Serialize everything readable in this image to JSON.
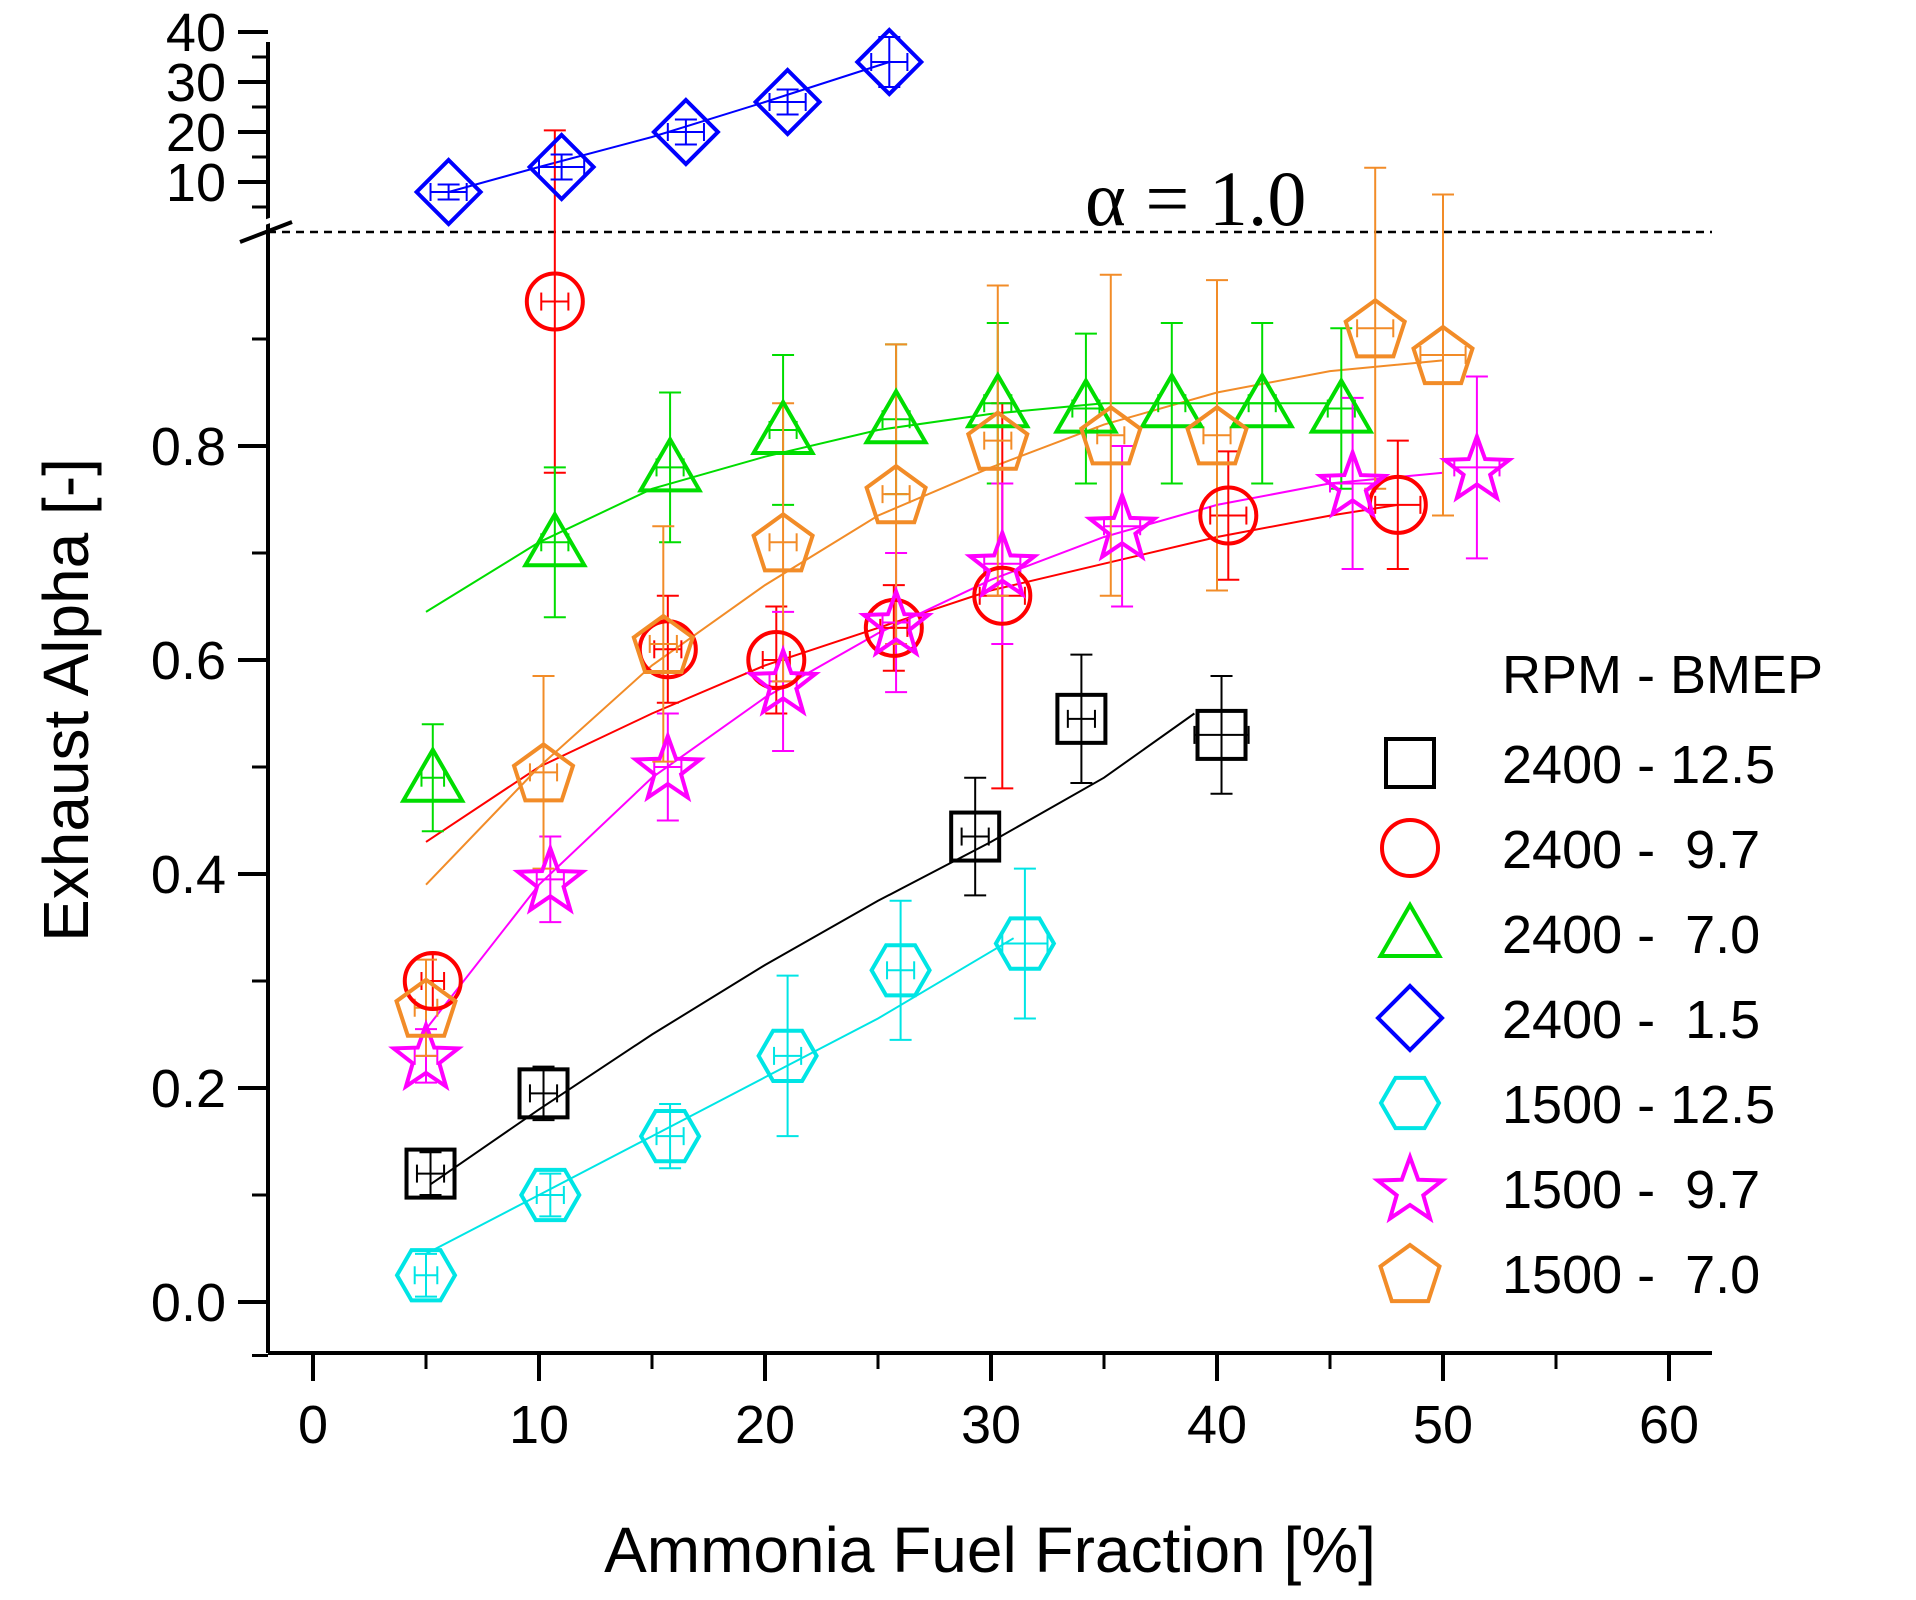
{
  "chart_data": {
    "type": "scatter",
    "title": "",
    "xlabel": "Ammonia Fuel Fraction [%]",
    "ylabel": "Exhaust Alpha [-]",
    "xlim": [
      -2,
      62
    ],
    "xticks": [
      "0",
      "10",
      "20",
      "30",
      "40",
      "50",
      "60"
    ],
    "ylim": [
      -0.05,
      1.0
    ],
    "yticks": [
      "0.0",
      "0.2",
      "0.4",
      "0.6",
      "0.8"
    ],
    "upper_segment": {
      "ylim": [
        0,
        40
      ],
      "yticks": [
        "10",
        "20",
        "30",
        "40"
      ]
    },
    "axis_break": true,
    "reference_line": {
      "y": 1.0,
      "label": "α = 1.0",
      "style": "dashed"
    },
    "grid": false,
    "legend": {
      "title": "RPM - BMEP",
      "placement": "right"
    },
    "series": [
      {
        "name": "2400 - 12.5",
        "marker": "square",
        "color": "#000000",
        "points": [
          {
            "x": 5.2,
            "y": 0.12,
            "err": 0.02,
            "xerr": 0.6
          },
          {
            "x": 10.2,
            "y": 0.195,
            "err": 0.025,
            "xerr": 0.6
          },
          {
            "x": 29.3,
            "y": 0.435,
            "err": 0.055,
            "xerr": 0.6
          },
          {
            "x": 34,
            "y": 0.545,
            "err": 0.06,
            "xerr": 0.6
          },
          {
            "x": 40.2,
            "y": 0.53,
            "err": 0.055,
            "xerr": 1.2
          }
        ],
        "fit": [
          [
            5.2,
            0.11
          ],
          [
            10,
            0.18
          ],
          [
            15,
            0.25
          ],
          [
            20,
            0.315
          ],
          [
            25,
            0.375
          ],
          [
            30,
            0.43
          ],
          [
            35,
            0.49
          ],
          [
            39,
            0.55
          ]
        ]
      },
      {
        "name": "2400 -  9.7",
        "marker": "circle",
        "color": "#ff0000",
        "points": [
          {
            "x": 5.3,
            "y": 0.3,
            "err": 0.025,
            "xerr": 0.5
          },
          {
            "x": 10.7,
            "y": 0.935,
            "err": 0.16,
            "xerr": 0.6
          },
          {
            "x": 15.7,
            "y": 0.61,
            "err": 0.05,
            "xerr": 0.6
          },
          {
            "x": 20.5,
            "y": 0.6,
            "err": 0.05,
            "xerr": 0.6
          },
          {
            "x": 25.7,
            "y": 0.63,
            "err": 0.04,
            "xerr": 0.6
          },
          {
            "x": 30.5,
            "y": 0.66,
            "err": 0.18,
            "xerr": 1.0
          },
          {
            "x": 40.5,
            "y": 0.735,
            "err": 0.06,
            "xerr": 0.8
          },
          {
            "x": 48,
            "y": 0.745,
            "err": 0.06,
            "xerr": 1.0
          }
        ],
        "fit": [
          [
            5,
            0.43
          ],
          [
            10,
            0.5
          ],
          [
            15,
            0.55
          ],
          [
            20,
            0.595
          ],
          [
            25,
            0.63
          ],
          [
            30,
            0.665
          ],
          [
            35,
            0.69
          ],
          [
            40,
            0.715
          ],
          [
            45,
            0.735
          ],
          [
            48,
            0.745
          ]
        ]
      },
      {
        "name": "2400 -  7.0",
        "marker": "triangle",
        "color": "#00dd00",
        "points": [
          {
            "x": 5.3,
            "y": 0.49,
            "err": 0.05,
            "xerr": 0.5
          },
          {
            "x": 10.7,
            "y": 0.71,
            "err": 0.07,
            "xerr": 0.6
          },
          {
            "x": 15.8,
            "y": 0.78,
            "err": 0.07,
            "xerr": 0.6
          },
          {
            "x": 20.8,
            "y": 0.815,
            "err": 0.07,
            "xerr": 0.6
          },
          {
            "x": 25.8,
            "y": 0.825,
            "err": 0.07,
            "xerr": 0.6
          },
          {
            "x": 30.3,
            "y": 0.84,
            "err": 0.075,
            "xerr": 0.6
          },
          {
            "x": 34.2,
            "y": 0.835,
            "err": 0.07,
            "xerr": 0.6
          },
          {
            "x": 38,
            "y": 0.84,
            "err": 0.075,
            "xerr": 0.6
          },
          {
            "x": 42,
            "y": 0.84,
            "err": 0.075,
            "xerr": 0.6
          },
          {
            "x": 45.5,
            "y": 0.835,
            "err": 0.075,
            "xerr": 0.6
          }
        ],
        "fit": [
          [
            5,
            0.645
          ],
          [
            10,
            0.71
          ],
          [
            15,
            0.76
          ],
          [
            20,
            0.79
          ],
          [
            25,
            0.815
          ],
          [
            30,
            0.83
          ],
          [
            35,
            0.84
          ],
          [
            40,
            0.84
          ],
          [
            45,
            0.84
          ]
        ]
      },
      {
        "name": "2400 -  1.5",
        "marker": "diamond",
        "color": "#0000ff",
        "points": [
          {
            "x": 6,
            "y": 8,
            "err": 1.5,
            "xerr": 0.8
          },
          {
            "x": 11,
            "y": 13,
            "err": 2.5,
            "xerr": 1.0
          },
          {
            "x": 16.5,
            "y": 20,
            "err": 2.5,
            "xerr": 0.8
          },
          {
            "x": 21,
            "y": 26,
            "err": 2.5,
            "xerr": 0.8
          },
          {
            "x": 25.5,
            "y": 34,
            "err": 5,
            "xerr": 0.8
          }
        ],
        "fit": [
          [
            6,
            8
          ],
          [
            10,
            13
          ],
          [
            15,
            19
          ],
          [
            20,
            26
          ],
          [
            25.5,
            34
          ]
        ]
      },
      {
        "name": "1500 - 12.5",
        "marker": "hexagon",
        "color": "#00e5e5",
        "points": [
          {
            "x": 5,
            "y": 0.025,
            "err": 0.02,
            "xerr": 0.5
          },
          {
            "x": 10.5,
            "y": 0.1,
            "err": 0.02,
            "xerr": 0.6
          },
          {
            "x": 15.8,
            "y": 0.155,
            "err": 0.03,
            "xerr": 0.6
          },
          {
            "x": 21,
            "y": 0.23,
            "err": 0.075,
            "xerr": 0.6
          },
          {
            "x": 26,
            "y": 0.31,
            "err": 0.065,
            "xerr": 0.6
          },
          {
            "x": 31.5,
            "y": 0.335,
            "err": 0.07,
            "xerr": 1.0
          }
        ],
        "fit": [
          [
            5,
            0.045
          ],
          [
            10,
            0.1
          ],
          [
            15,
            0.155
          ],
          [
            20,
            0.21
          ],
          [
            25,
            0.265
          ],
          [
            31,
            0.34
          ]
        ]
      },
      {
        "name": "1500 -  9.7",
        "marker": "star",
        "color": "#ff00ff",
        "points": [
          {
            "x": 5,
            "y": 0.23,
            "err": 0.025,
            "xerr": 0.5
          },
          {
            "x": 10.5,
            "y": 0.395,
            "err": 0.04,
            "xerr": 0.6
          },
          {
            "x": 15.7,
            "y": 0.5,
            "err": 0.05,
            "xerr": 0.6
          },
          {
            "x": 20.8,
            "y": 0.58,
            "err": 0.065,
            "xerr": 0.6
          },
          {
            "x": 25.8,
            "y": 0.635,
            "err": 0.065,
            "xerr": 0.6
          },
          {
            "x": 30.5,
            "y": 0.69,
            "err": 0.075,
            "xerr": 0.8
          },
          {
            "x": 35.8,
            "y": 0.725,
            "err": 0.075,
            "xerr": 0.8
          },
          {
            "x": 46,
            "y": 0.765,
            "err": 0.08,
            "xerr": 1.0
          },
          {
            "x": 51.5,
            "y": 0.78,
            "err": 0.085,
            "xerr": 1.0
          }
        ],
        "fit": [
          [
            5,
            0.255
          ],
          [
            10,
            0.39
          ],
          [
            15,
            0.49
          ],
          [
            20,
            0.565
          ],
          [
            25,
            0.625
          ],
          [
            30,
            0.675
          ],
          [
            35,
            0.715
          ],
          [
            40,
            0.745
          ],
          [
            45,
            0.765
          ],
          [
            50,
            0.775
          ]
        ]
      },
      {
        "name": "1500 -  7.0",
        "marker": "pentagon",
        "color": "#f28c28",
        "points": [
          {
            "x": 5,
            "y": 0.275,
            "err": 0.045,
            "xerr": 0.5
          },
          {
            "x": 10.2,
            "y": 0.495,
            "err": 0.09,
            "xerr": 0.6
          },
          {
            "x": 15.5,
            "y": 0.615,
            "err": 0.11,
            "xerr": 0.6
          },
          {
            "x": 20.8,
            "y": 0.71,
            "err": 0.13,
            "xerr": 0.6
          },
          {
            "x": 25.8,
            "y": 0.755,
            "err": 0.14,
            "xerr": 0.6
          },
          {
            "x": 30.3,
            "y": 0.805,
            "err": 0.145,
            "xerr": 0.6
          },
          {
            "x": 35.3,
            "y": 0.81,
            "err": 0.15,
            "xerr": 0.6
          },
          {
            "x": 40,
            "y": 0.81,
            "err": 0.145,
            "xerr": 0.6
          },
          {
            "x": 47,
            "y": 0.91,
            "err": 0.15,
            "xerr": 0.8
          },
          {
            "x": 50,
            "y": 0.885,
            "err": 0.15,
            "xerr": 1.0
          }
        ],
        "fit": [
          [
            5,
            0.39
          ],
          [
            10,
            0.5
          ],
          [
            15,
            0.595
          ],
          [
            20,
            0.67
          ],
          [
            25,
            0.735
          ],
          [
            30,
            0.78
          ],
          [
            35,
            0.82
          ],
          [
            40,
            0.85
          ],
          [
            45,
            0.87
          ],
          [
            50,
            0.88
          ]
        ]
      }
    ]
  }
}
